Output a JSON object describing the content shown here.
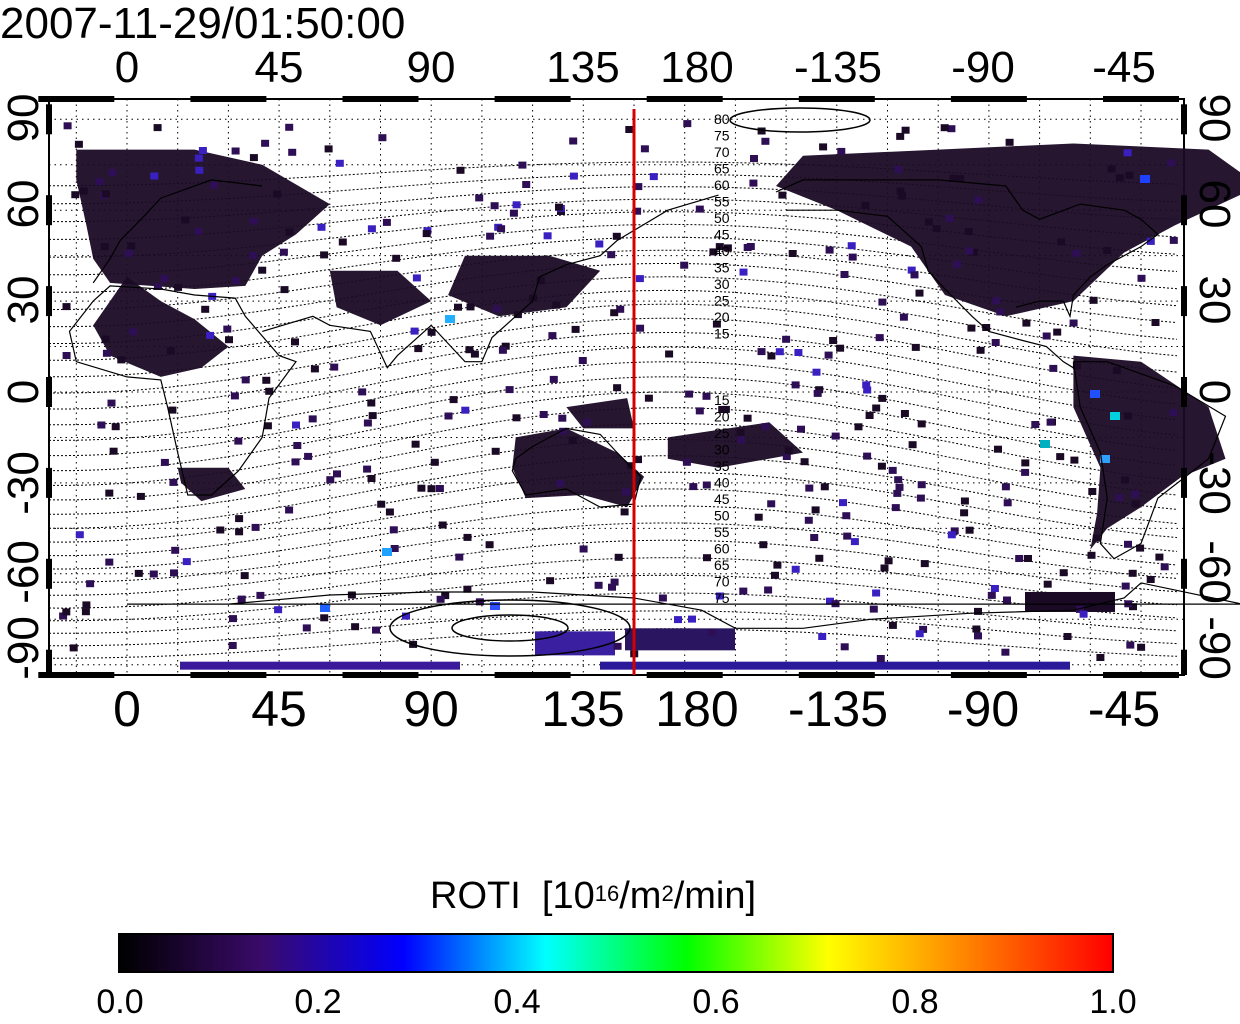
{
  "timestamp": "2007-11-29/01:50:00",
  "map": {
    "x_ticks": [
      "0",
      "45",
      "90",
      "135",
      "180",
      "-135",
      "-90",
      "-45"
    ],
    "y_ticks_left": [
      "90",
      "60",
      "30",
      "0",
      "-30",
      "-60",
      "-90"
    ],
    "y_ticks_right": [
      "90",
      "60",
      "30",
      "0",
      "-30",
      "-60",
      "-90"
    ],
    "meridian_longitude": 150,
    "meridian_color": "#d40000",
    "magnetic_latitude_labels_north": [
      "80",
      "75",
      "70",
      "65",
      "60",
      "55",
      "50",
      "45",
      "40",
      "35",
      "30",
      "25",
      "20",
      "15"
    ],
    "magnetic_latitude_labels_south": [
      "15",
      "20",
      "25",
      "30",
      "35",
      "40",
      "45",
      "50",
      "55",
      "60",
      "65",
      "70",
      "75"
    ]
  },
  "colorbar": {
    "title": "ROTI",
    "units_prefix": "[10",
    "units_exp1": "16",
    "units_mid": "/m",
    "units_exp2": "2",
    "units_suffix": "/min]",
    "tick_labels": [
      "0.0",
      "0.2",
      "0.4",
      "0.6",
      "0.8",
      "1.0"
    ],
    "colors": [
      "#000000",
      "#3a0a6a",
      "#0000ff",
      "#00ffff",
      "#00ff00",
      "#ffff00",
      "#ff8000",
      "#ff0000"
    ]
  }
}
